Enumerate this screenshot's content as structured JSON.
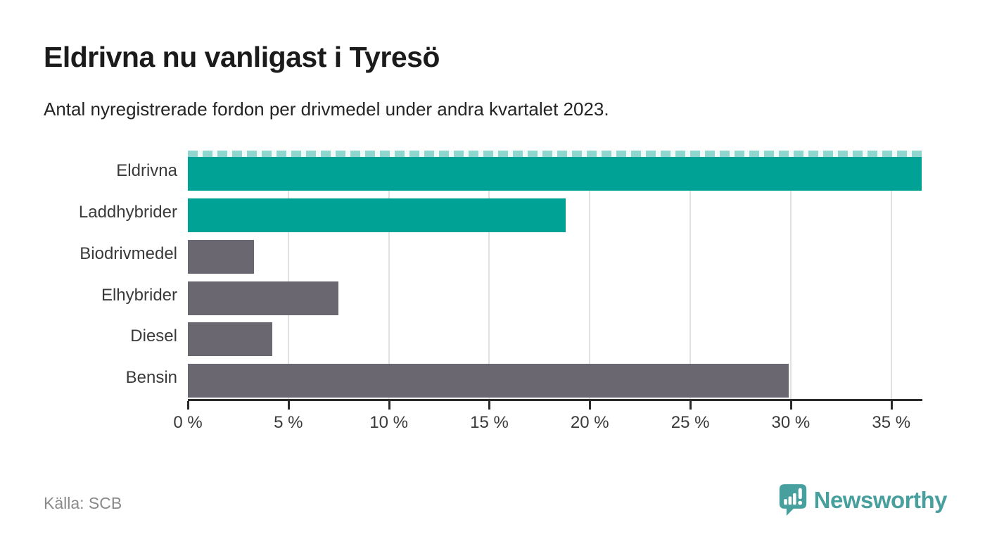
{
  "header": {
    "title": "Eldrivna nu vanligast i Tyresö",
    "subtitle": "Antal nyregistrerade fordon per drivmedel under andra kvartalet 2023."
  },
  "footer": {
    "source": "Källa: SCB",
    "brand": "Newsworthy"
  },
  "colors": {
    "highlight_teal": "#00a296",
    "neutral_gray": "#6b6770",
    "brand_teal": "#47a09d",
    "gridline": "#e1e1e1",
    "axis": "#2b2b2b",
    "text_dark": "#3a3a3a",
    "text_muted": "#8a8a8a"
  },
  "icons": {
    "brand_logo": "newsworthy-speech-bubble-chart-icon"
  },
  "chart_data": {
    "type": "bar",
    "orientation": "horizontal",
    "title": "Eldrivna nu vanligast i Tyresö",
    "subtitle": "Antal nyregistrerade fordon per drivmedel under andra kvartalet 2023.",
    "categories": [
      "Eldrivna",
      "Laddhybrider",
      "Biodrivmedel",
      "Elhybrider",
      "Diesel",
      "Bensin"
    ],
    "values": [
      36.5,
      18.8,
      3.3,
      7.5,
      4.2,
      29.9
    ],
    "bar_colors": [
      "#00a296",
      "#00a296",
      "#6b6770",
      "#6b6770",
      "#6b6770",
      "#6b6770"
    ],
    "unit": "%",
    "xlabel": "",
    "ylabel": "",
    "xlim": [
      0,
      36.55
    ],
    "x_ticks": [
      0,
      5,
      10,
      15,
      20,
      25,
      30,
      35
    ],
    "x_tick_labels": [
      "0 %",
      "5 %",
      "10 %",
      "15 %",
      "20 %",
      "25 %",
      "30 %",
      "35 %"
    ],
    "grid": "vertical gridlines at 5% intervals, behind bars",
    "legend": "none",
    "clipped_bar_index": 0
  }
}
